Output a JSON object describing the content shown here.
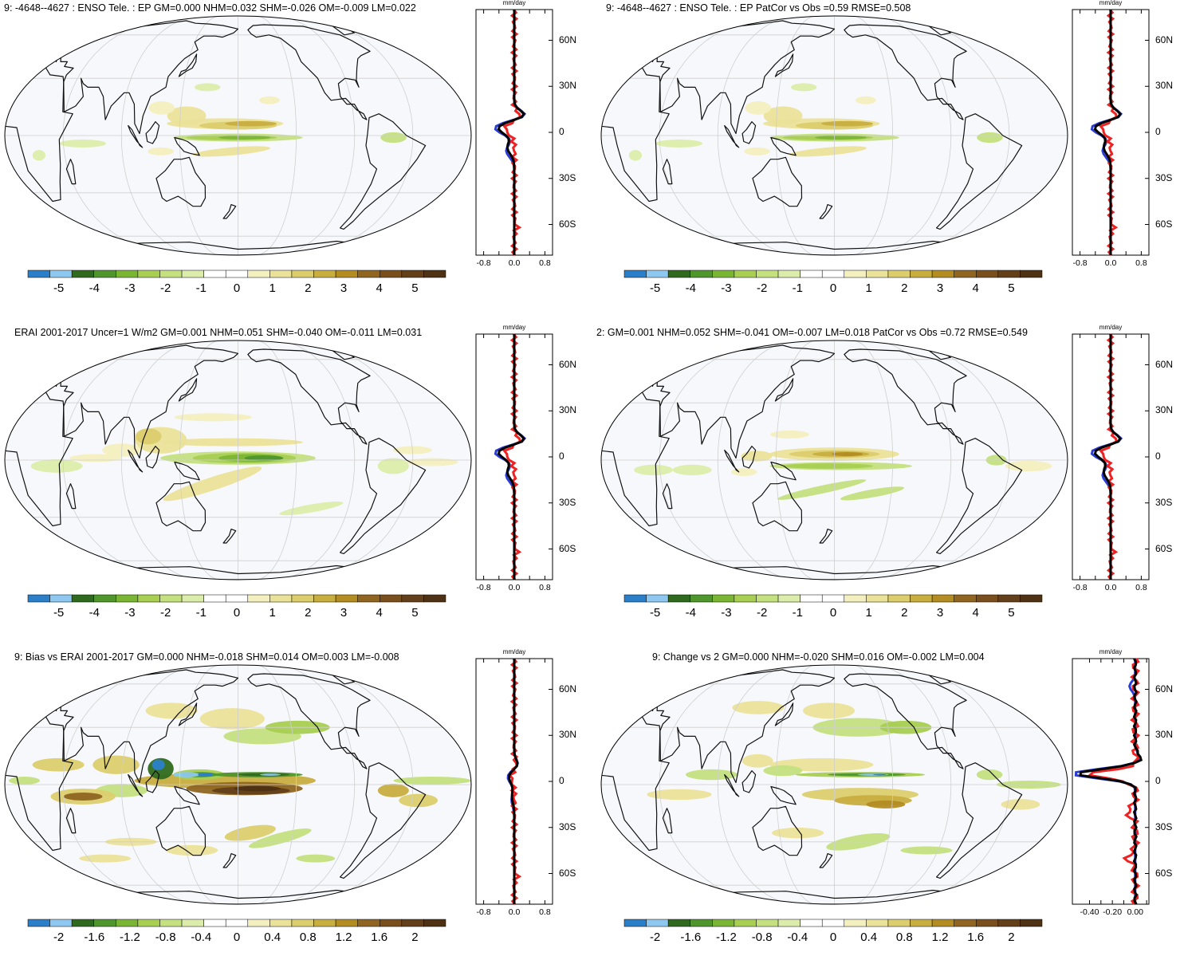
{
  "colors": {
    "ocean": "#f7f8fc",
    "grid": "#cfcfcf",
    "coast": "#111111",
    "obs_line": "#2a3dd6",
    "model_line": "#ee2222",
    "ref_line": "#000000",
    "palette": [
      "#2b7fc9",
      "#8ec7ef",
      "#2f6a1e",
      "#4f962c",
      "#7ab533",
      "#a8cf52",
      "#c4e07f",
      "#dcedab",
      "#ffffff",
      "#ffffff",
      "#f4efbf",
      "#ebe29a",
      "#dccd6d",
      "#c8ad3f",
      "#b38c22",
      "#8f6521",
      "#7a4f1e",
      "#63401a",
      "#4e3213"
    ]
  },
  "panels": [
    {
      "title": "9: -4648--4627 : ENSO Tele. : EP GM=0.000 NHM=0.032 SHM=-0.026 OM=-0.009 LM=0.022",
      "cb_labels": [
        "-5",
        "-4",
        "-3",
        "-2",
        "-1",
        "0",
        "1",
        "2",
        "3",
        "4",
        "5"
      ],
      "profile": {
        "unit": "mm/day",
        "ticks": [
          "-0.8",
          "0.0",
          "0.8"
        ],
        "lats": [
          "60N",
          "30N",
          "0",
          "30S",
          "60S"
        ]
      },
      "style": "enso"
    },
    {
      "title": "9: -4648--4627 : ENSO Tele. : EP PatCor vs Obs =0.59 RMSE=0.508",
      "cb_labels": [
        "-5",
        "-4",
        "-3",
        "-2",
        "-1",
        "0",
        "1",
        "2",
        "3",
        "4",
        "5"
      ],
      "profile": {
        "unit": "mm/day",
        "ticks": [
          "-0.8",
          "0.0",
          "0.8"
        ],
        "lats": [
          "60N",
          "30N",
          "0",
          "30S",
          "60S"
        ]
      },
      "style": "enso"
    },
    {
      "title": "ERAI 2001-2017 Uncer=1 W/m2 GM=0.001 NHM=0.051 SHM=-0.040 OM=-0.011 LM=0.031",
      "cb_labels": [
        "-5",
        "-4",
        "-3",
        "-2",
        "-1",
        "0",
        "1",
        "2",
        "3",
        "4",
        "5"
      ],
      "profile": {
        "unit": "mm/day",
        "ticks": [
          "-0.8",
          "0.0",
          "0.8"
        ],
        "lats": [
          "60N",
          "30N",
          "0",
          "30S",
          "60S"
        ]
      },
      "style": "obs"
    },
    {
      "title": "2: GM=0.001 NHM=0.052 SHM=-0.041 OM=-0.007 LM=0.018 PatCor vs Obs =0.72 RMSE=0.549",
      "cb_labels": [
        "-5",
        "-4",
        "-3",
        "-2",
        "-1",
        "0",
        "1",
        "2",
        "3",
        "4",
        "5"
      ],
      "profile": {
        "unit": "mm/day",
        "ticks": [
          "-0.8",
          "0.0",
          "0.8"
        ],
        "lats": [
          "60N",
          "30N",
          "0",
          "30S",
          "60S"
        ]
      },
      "style": "model2"
    },
    {
      "title": "9: Bias vs ERAI 2001-2017 GM=0.000 NHM=-0.018 SHM=0.014 OM=0.003 LM=-0.008",
      "cb_labels": [
        "-2",
        "-1.6",
        "-1.2",
        "-0.8",
        "-0.4",
        "0",
        "0.4",
        "0.8",
        "1.2",
        "1.6",
        "2"
      ],
      "profile": {
        "unit": "mm/day",
        "ticks": [
          "-0.8",
          "0.0",
          "0.8"
        ],
        "lats": [
          "60N",
          "30N",
          "0",
          "30S",
          "60S"
        ]
      },
      "style": "bias"
    },
    {
      "title": "9: Change vs 2 GM=0.000 NHM=-0.020 SHM=0.016 OM=-0.002 LM=0.004",
      "cb_labels": [
        "-2",
        "-1.6",
        "-1.2",
        "-0.8",
        "-0.4",
        "0",
        "0.4",
        "0.8",
        "1.2",
        "1.6",
        "2"
      ],
      "profile": {
        "unit": "mm/day",
        "ticks": [
          "-0.40",
          "-0.20",
          "0.00"
        ],
        "lats": [
          "60N",
          "30N",
          "0",
          "30S",
          "60S"
        ]
      },
      "style": "change"
    }
  ]
}
